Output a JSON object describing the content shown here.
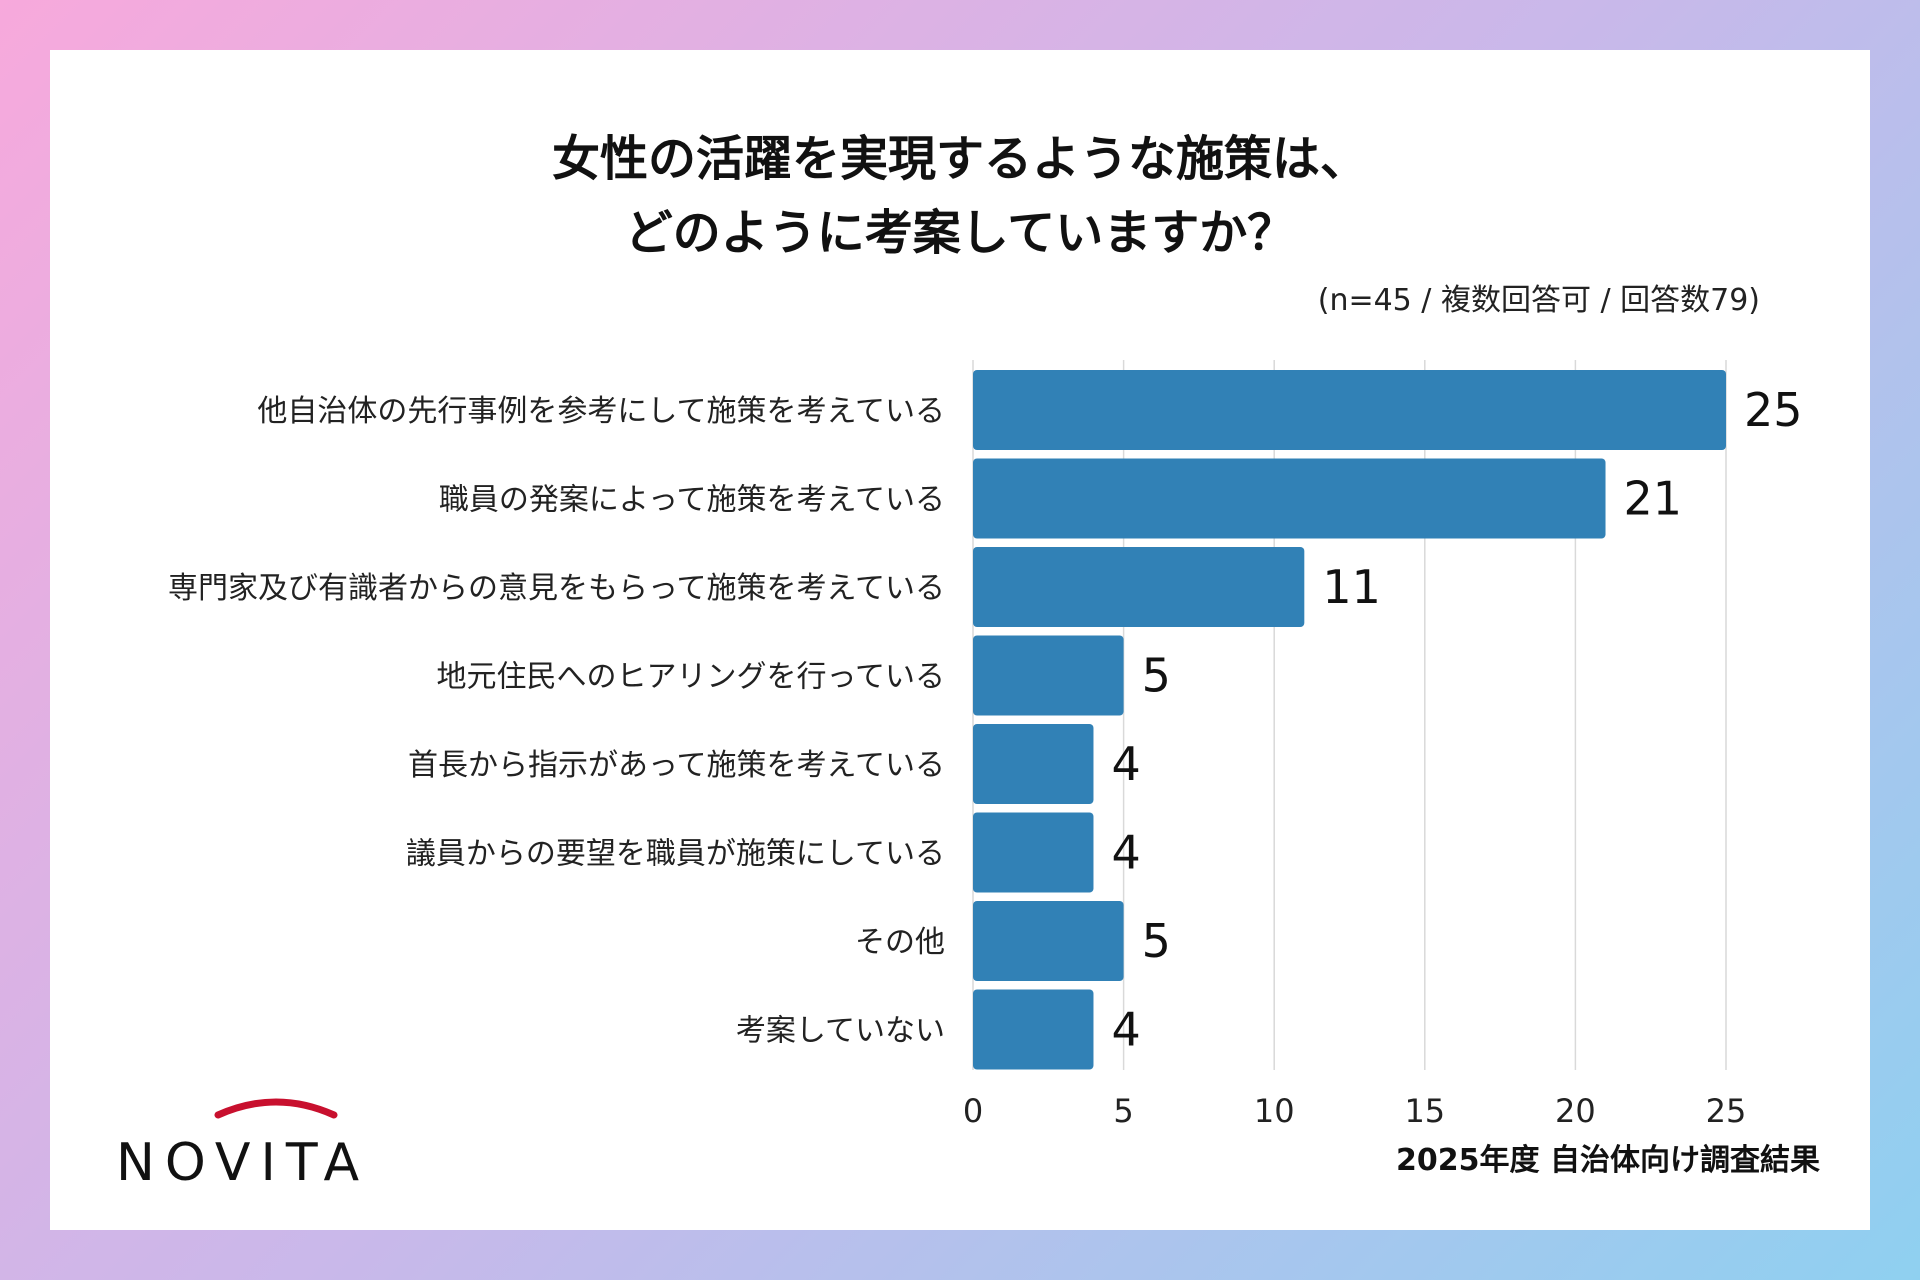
{
  "title_line1": "女性の活躍を実現するような施策は、",
  "title_line2": "どのように考案していますか？",
  "subtitle": "(n=45 / 複数回答可 / 回答数79)",
  "brand": "NOVITA",
  "footer": "2025年度 自治体向け調査結果",
  "colors": {
    "bar": "#3181b6",
    "grid": "#d9d9d9",
    "logo_arc": "#c8102e"
  },
  "chart_data": {
    "type": "bar",
    "orientation": "horizontal",
    "categories": [
      "他自治体の先行事例を参考にして施策を考えている",
      "職員の発案によって施策を考えている",
      "専門家及び有識者からの意見をもらって施策を考えている",
      "地元住民へのヒアリングを行っている",
      "首長から指示があって施策を考えている",
      "議員からの要望を職員が施策にしている",
      "その他",
      "考案していない"
    ],
    "values": [
      25,
      21,
      11,
      5,
      4,
      4,
      5,
      4
    ],
    "xlim": [
      0,
      25
    ],
    "xticks": [
      0,
      5,
      10,
      15,
      20,
      25
    ],
    "grid": true
  }
}
